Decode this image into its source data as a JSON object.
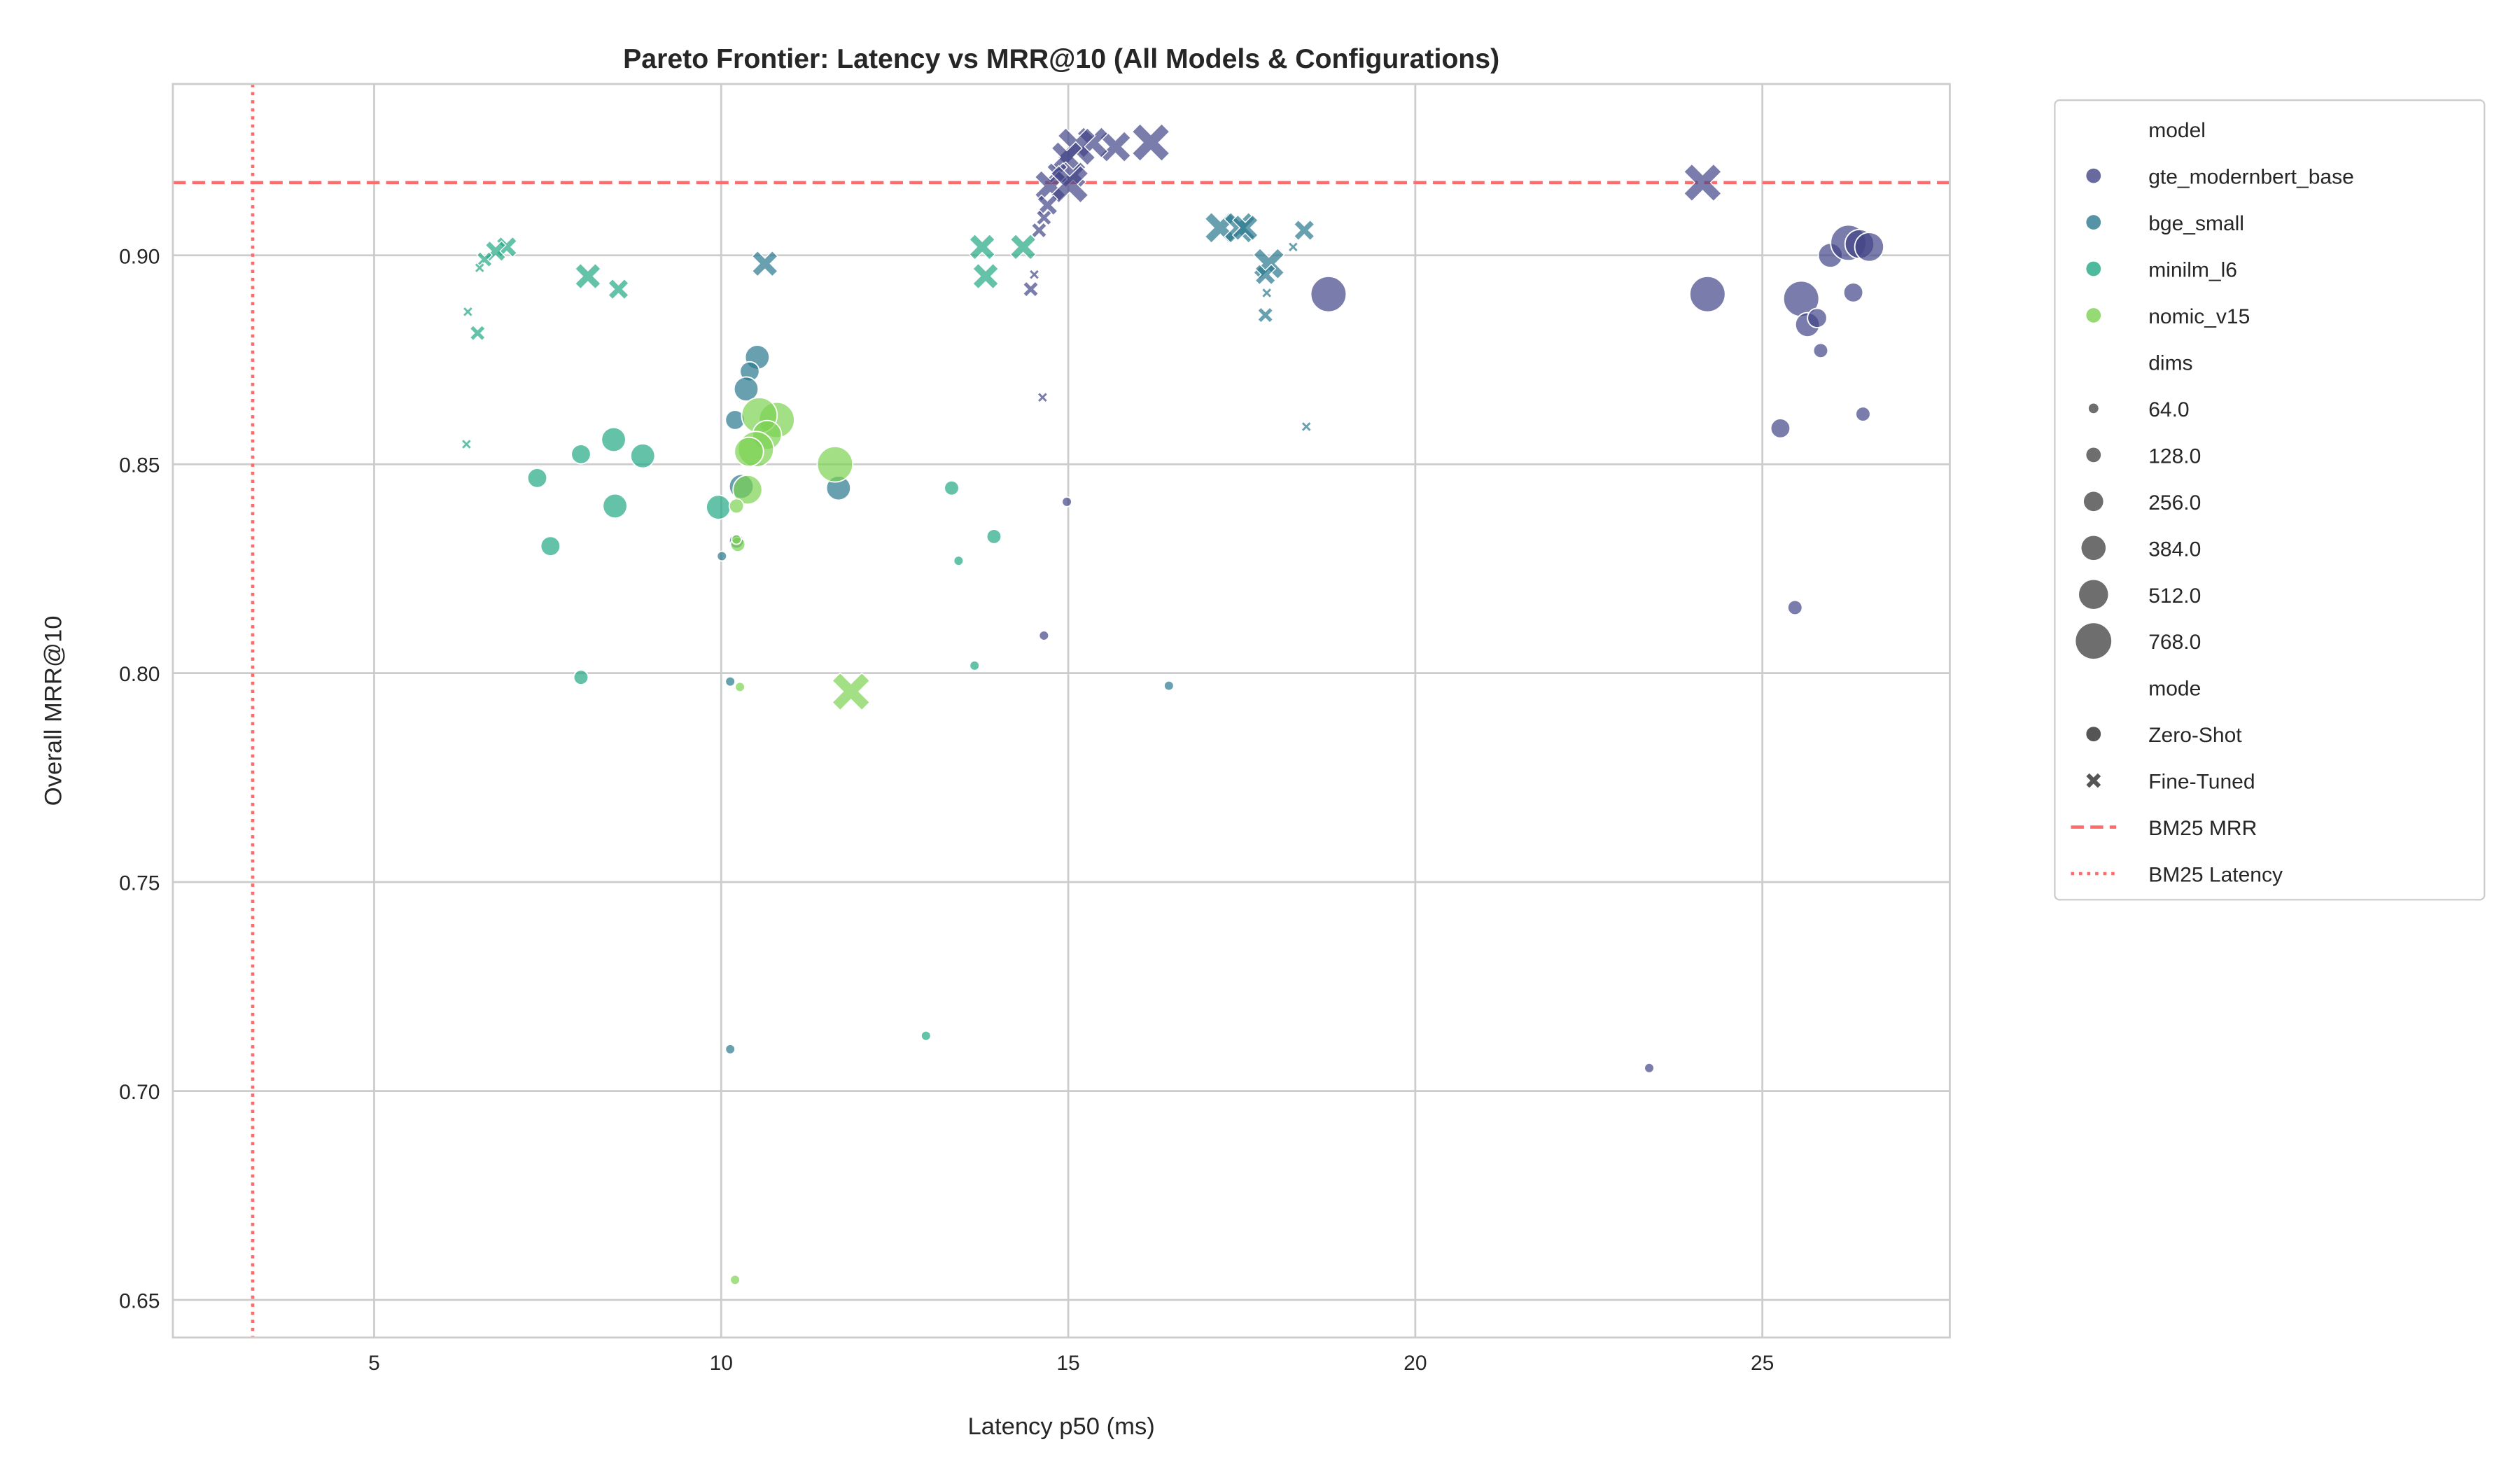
{
  "chart_data": {
    "type": "scatter",
    "title": "Pareto Frontier: Latency vs MRR@10 (All Models & Configurations)",
    "xlabel": "Latency p50 (ms)",
    "ylabel": "Overall MRR@10",
    "xlim": [
      2.1,
      27.7
    ],
    "ylim": [
      0.641,
      0.941
    ],
    "xticks": [
      5,
      10,
      15,
      20,
      25
    ],
    "yticks": [
      0.65,
      0.7,
      0.75,
      0.8,
      0.85,
      0.9
    ],
    "ytick_labels": [
      "0.65",
      "0.70",
      "0.75",
      "0.80",
      "0.85",
      "0.90"
    ],
    "grid": true,
    "legend_placement": "outside-right",
    "legend": {
      "model_title": "model",
      "dims_title": "dims",
      "mode_title": "mode",
      "dims_labels": [
        "64.0",
        "128.0",
        "256.0",
        "384.0",
        "512.0",
        "768.0"
      ],
      "mode_labels": [
        "Zero-Shot",
        "Fine-Tuned"
      ],
      "bm25_mrr_label": "BM25 MRR",
      "bm25_latency_label": "BM25 Latency"
    },
    "reference_lines": {
      "bm25_mrr": 0.9174,
      "bm25_latency": 3.25,
      "color": "#ff6b6b"
    },
    "series": [
      {
        "name": "gte_modernbert_base",
        "color": "#414487",
        "zero_shot": [
          [
            24.21,
            0.8907,
            768
          ],
          [
            18.75,
            0.8907,
            768
          ],
          [
            25.47,
            0.8157,
            128
          ],
          [
            23.37,
            0.7055,
            64
          ],
          [
            25.26,
            0.8586,
            256
          ],
          [
            26.45,
            0.862,
            128
          ],
          [
            25.84,
            0.8772,
            128
          ],
          [
            26.31,
            0.8911,
            256
          ],
          [
            25.56,
            0.8896,
            768
          ],
          [
            25.65,
            0.8834,
            384
          ],
          [
            25.79,
            0.885,
            256
          ],
          [
            25.98,
            0.9,
            384
          ],
          [
            26.24,
            0.903,
            768
          ],
          [
            26.4,
            0.9027,
            512
          ],
          [
            26.54,
            0.902,
            512
          ],
          [
            14.65,
            0.809,
            64
          ],
          [
            14.98,
            0.841,
            64
          ]
        ],
        "fine_tuned": [
          [
            24.14,
            0.9174,
            768
          ],
          [
            16.19,
            0.927,
            768
          ],
          [
            15.68,
            0.926,
            512
          ],
          [
            15.35,
            0.927,
            512
          ],
          [
            15.12,
            0.926,
            768
          ],
          [
            14.98,
            0.9235,
            512
          ],
          [
            15.07,
            0.9193,
            384
          ],
          [
            14.84,
            0.9197,
            256
          ],
          [
            14.74,
            0.9166,
            512
          ],
          [
            15.02,
            0.917,
            768
          ],
          [
            14.7,
            0.912,
            256
          ],
          [
            14.65,
            0.909,
            128
          ],
          [
            14.58,
            0.906,
            128
          ],
          [
            14.51,
            0.8954,
            64
          ],
          [
            14.46,
            0.8919,
            128
          ],
          [
            14.63,
            0.866,
            64
          ]
        ]
      },
      {
        "name": "bge_small",
        "color": "#2a788e",
        "zero_shot": [
          [
            10.52,
            0.8756,
            384
          ],
          [
            10.41,
            0.8722,
            256
          ],
          [
            10.36,
            0.868,
            384
          ],
          [
            10.2,
            0.8606,
            256
          ],
          [
            10.29,
            0.8447,
            384
          ],
          [
            11.69,
            0.8443,
            384
          ],
          [
            10.01,
            0.828,
            64
          ],
          [
            10.13,
            0.798,
            64
          ],
          [
            10.13,
            0.71,
            64
          ],
          [
            16.45,
            0.797,
            64
          ],
          [
            10.22,
            0.8316,
            128
          ]
        ],
        "fine_tuned": [
          [
            10.63,
            0.898,
            384
          ],
          [
            17.19,
            0.9066,
            512
          ],
          [
            17.47,
            0.9066,
            512
          ],
          [
            17.55,
            0.9066,
            384
          ],
          [
            18.4,
            0.906,
            256
          ],
          [
            18.24,
            0.902,
            64
          ],
          [
            17.89,
            0.898,
            512
          ],
          [
            17.84,
            0.8954,
            256
          ],
          [
            17.86,
            0.891,
            64
          ],
          [
            17.84,
            0.8857,
            128
          ],
          [
            18.43,
            0.859,
            64
          ]
        ]
      },
      {
        "name": "minilm_l6",
        "color": "#22a884",
        "zero_shot": [
          [
            7.35,
            0.8467,
            256
          ],
          [
            7.54,
            0.8304,
            256
          ],
          [
            7.98,
            0.8524,
            256
          ],
          [
            8.45,
            0.8559,
            384
          ],
          [
            8.47,
            0.84,
            384
          ],
          [
            8.87,
            0.852,
            384
          ],
          [
            9.96,
            0.8397,
            384
          ],
          [
            7.98,
            0.799,
            128
          ],
          [
            13.32,
            0.8443,
            128
          ],
          [
            13.93,
            0.8327,
            128
          ],
          [
            13.42,
            0.8269,
            64
          ],
          [
            13.65,
            0.8018,
            64
          ],
          [
            12.95,
            0.7132,
            64
          ]
        ],
        "fine_tuned": [
          [
            8.08,
            0.895,
            384
          ],
          [
            8.52,
            0.8919,
            256
          ],
          [
            6.91,
            0.902,
            256
          ],
          [
            6.75,
            0.901,
            256
          ],
          [
            6.59,
            0.899,
            128
          ],
          [
            6.52,
            0.897,
            64
          ],
          [
            6.49,
            0.8814,
            128
          ],
          [
            6.35,
            0.8865,
            64
          ],
          [
            6.33,
            0.8548,
            64
          ],
          [
            13.76,
            0.902,
            384
          ],
          [
            13.81,
            0.895,
            384
          ],
          [
            14.35,
            0.902,
            384
          ]
        ]
      },
      {
        "name": "nomic_v15",
        "color": "#7ad151",
        "zero_shot": [
          [
            10.8,
            0.8606,
            768
          ],
          [
            10.55,
            0.8617,
            768
          ],
          [
            10.66,
            0.857,
            512
          ],
          [
            10.5,
            0.8536,
            768
          ],
          [
            10.4,
            0.853,
            512
          ],
          [
            10.38,
            0.8439,
            512
          ],
          [
            11.64,
            0.85,
            768
          ],
          [
            10.24,
            0.8308,
            128
          ],
          [
            10.22,
            0.832,
            64
          ],
          [
            10.27,
            0.7967,
            64
          ],
          [
            10.2,
            0.6548,
            64
          ],
          [
            10.22,
            0.84,
            128
          ]
        ],
        "fine_tuned": [
          [
            11.87,
            0.7956,
            768
          ]
        ]
      }
    ]
  }
}
